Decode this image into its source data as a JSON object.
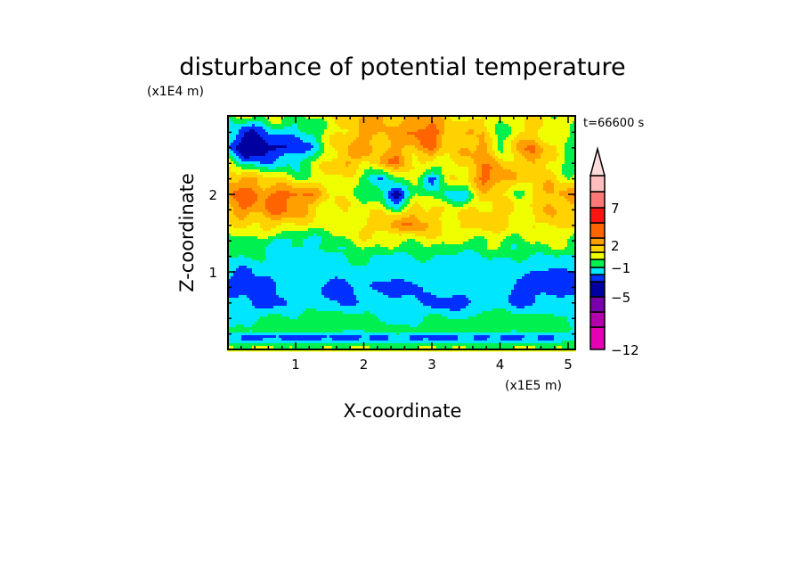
{
  "chart_data": {
    "type": "heatmap",
    "subtype": "filled-contour",
    "title": "disturbance of potential temperature",
    "xlabel": "X-coordinate",
    "ylabel": "Z-coordinate",
    "x_unit_label": "(x1E5 m)",
    "y_unit_label": "(x1E4 m)",
    "time_label": "t=66600 s",
    "xlim": [
      0,
      5.11
    ],
    "ylim": [
      0,
      3.0
    ],
    "x_ticks": [
      "1",
      "2",
      "3",
      "4",
      "5"
    ],
    "y_ticks": [
      "1",
      "2"
    ],
    "colorbar": {
      "levels": [
        -12,
        -9,
        -7,
        -5,
        -3,
        -2,
        -1,
        0,
        1,
        2,
        3,
        5,
        7,
        9,
        12
      ],
      "tick_labels": [
        "-12",
        "-5",
        "-1",
        "2",
        "7"
      ],
      "colors": [
        "#e600b4",
        "#b400aa",
        "#7800aa",
        "#0000a0",
        "#0030ff",
        "#00e6ff",
        "#00f050",
        "#f0ff00",
        "#ffd200",
        "#ffa000",
        "#ff6400",
        "#ff1414",
        "#ff7878",
        "#ffbebe",
        "#ffdcdc"
      ],
      "extend": "max"
    },
    "grid_x": [
      0,
      0.25,
      0.5,
      0.75,
      1,
      1.25,
      1.5,
      1.75,
      2,
      2.25,
      2.5,
      2.75,
      3,
      3.25,
      3.5,
      3.75,
      4,
      4.25,
      4.5,
      4.75,
      5
    ],
    "grid_z": [
      3.0,
      2.8,
      2.6,
      2.4,
      2.2,
      2.0,
      1.8,
      1.6,
      1.4,
      1.2,
      1.0,
      0.8,
      0.6,
      0.4,
      0.25,
      0.15,
      0.0
    ],
    "values": [
      [
        -0.5,
        0.5,
        -0.5,
        0.5,
        -0.5,
        0.5,
        0.5,
        1.5,
        2,
        2.5,
        1.5,
        2.5,
        2,
        1,
        0.5,
        1.5,
        0.5,
        0.5,
        1,
        0.5,
        0.5
      ],
      [
        -1.5,
        -3,
        -2.5,
        -1,
        -2,
        -1,
        0.5,
        1.5,
        2.5,
        2,
        2,
        3.5,
        4,
        2,
        1.5,
        2,
        -1.5,
        1.5,
        1,
        0.5,
        -0.5
      ],
      [
        -2,
        -4,
        -4.5,
        -3,
        -3,
        -1.5,
        0.5,
        2,
        2.5,
        1.5,
        2.5,
        2,
        3,
        1,
        2,
        3,
        -0.5,
        2,
        3,
        1.5,
        0
      ],
      [
        0.5,
        -1.5,
        -2,
        -1,
        -1.5,
        0,
        1,
        2.5,
        1,
        2,
        3,
        0.5,
        1,
        0.5,
        1.5,
        2.5,
        2,
        1,
        2.5,
        0.5,
        -0.5
      ],
      [
        2,
        2.5,
        1.5,
        1,
        0,
        0.5,
        1,
        0.5,
        -0.5,
        -2.5,
        0.5,
        0.5,
        -2.5,
        0.5,
        1,
        3.5,
        3,
        1.5,
        1,
        1.5,
        0.5
      ],
      [
        3,
        3.5,
        3,
        3.5,
        3.5,
        2.5,
        1,
        0.5,
        0,
        -1,
        -4,
        -0.5,
        0,
        -1.5,
        -1.5,
        1.5,
        1,
        -0.5,
        1.5,
        2,
        2.5
      ],
      [
        2,
        3,
        2.5,
        3.5,
        2.5,
        1.5,
        0.5,
        1,
        0,
        1,
        -0.5,
        2,
        1,
        0.5,
        1,
        1,
        2,
        1,
        0.5,
        2.5,
        1.5
      ],
      [
        0.5,
        1,
        1,
        1.5,
        1,
        0.5,
        0,
        1,
        1,
        2,
        2.5,
        3,
        1.5,
        1,
        1.5,
        2,
        1,
        0.5,
        1,
        1.5,
        1
      ],
      [
        -0.5,
        0,
        -0.5,
        -1.5,
        -1.5,
        -1,
        -0.5,
        0,
        0.5,
        0.5,
        0,
        0.5,
        0.5,
        0.5,
        -0.5,
        0,
        0.5,
        -0.5,
        0,
        0.5,
        0
      ],
      [
        -1,
        -1,
        -1,
        -1.5,
        -1.5,
        -1.5,
        -1.5,
        -1,
        -0.5,
        -1,
        -1.5,
        -1,
        -1,
        -1,
        -1.5,
        -1,
        -1,
        -1,
        -1,
        -1,
        -1
      ],
      [
        -1.5,
        -2.5,
        -1.5,
        -1.5,
        -1.5,
        -1.5,
        -1.5,
        -1.5,
        -1.5,
        -1.5,
        -1.5,
        -1.5,
        -1.5,
        -1.5,
        -1.5,
        -1.5,
        -1.5,
        -1.5,
        -2,
        -2.5,
        -2
      ],
      [
        -2.5,
        -2.5,
        -2.5,
        -2,
        -1.5,
        -1.5,
        -2.5,
        -2.5,
        -1.5,
        -2.5,
        -2.5,
        -2.5,
        -1.5,
        -1.5,
        -1.5,
        -1.5,
        -1.5,
        -2.5,
        -2.5,
        -2.5,
        -2.5
      ],
      [
        -1.5,
        -1.5,
        -2.5,
        -2.5,
        -1.5,
        -1.5,
        -1.5,
        -2.5,
        -1.5,
        -1.5,
        -1.5,
        -1.5,
        -2.5,
        -2.5,
        -2.5,
        -1.5,
        -1.5,
        -2.5,
        -2,
        -1.5,
        -1.5
      ],
      [
        -1.5,
        -1.5,
        -1,
        -0.5,
        -1,
        -0.5,
        -0.5,
        -0.5,
        -0.5,
        -1,
        -1.5,
        -1.5,
        -0.5,
        -1,
        -1,
        -0.5,
        -0.5,
        -0.5,
        -0.5,
        -0.5,
        -1
      ],
      [
        -1,
        -0.5,
        -0.5,
        -0.5,
        -0.5,
        -0.5,
        -0.5,
        -0.5,
        -1,
        -0.5,
        -0.5,
        -0.5,
        -0.5,
        -0.5,
        -1,
        -0.5,
        -0.5,
        -0.5,
        -0.5,
        -0.5,
        -1
      ],
      [
        -2,
        -2.5,
        -2.5,
        -2,
        -2.5,
        -2.5,
        -2.5,
        -3,
        -2,
        -2.5,
        -2,
        -2.5,
        -2.5,
        -2.5,
        -2,
        -2.5,
        -2.5,
        -2.5,
        -2,
        -2.5,
        -1.5
      ],
      [
        0.5,
        0.5,
        0.5,
        0.5,
        0.5,
        0.5,
        0.5,
        0.5,
        0.5,
        0.5,
        0.5,
        0.5,
        0.5,
        0.5,
        0.5,
        0.5,
        0.5,
        0.5,
        0.5,
        0.5,
        0.5
      ]
    ]
  }
}
